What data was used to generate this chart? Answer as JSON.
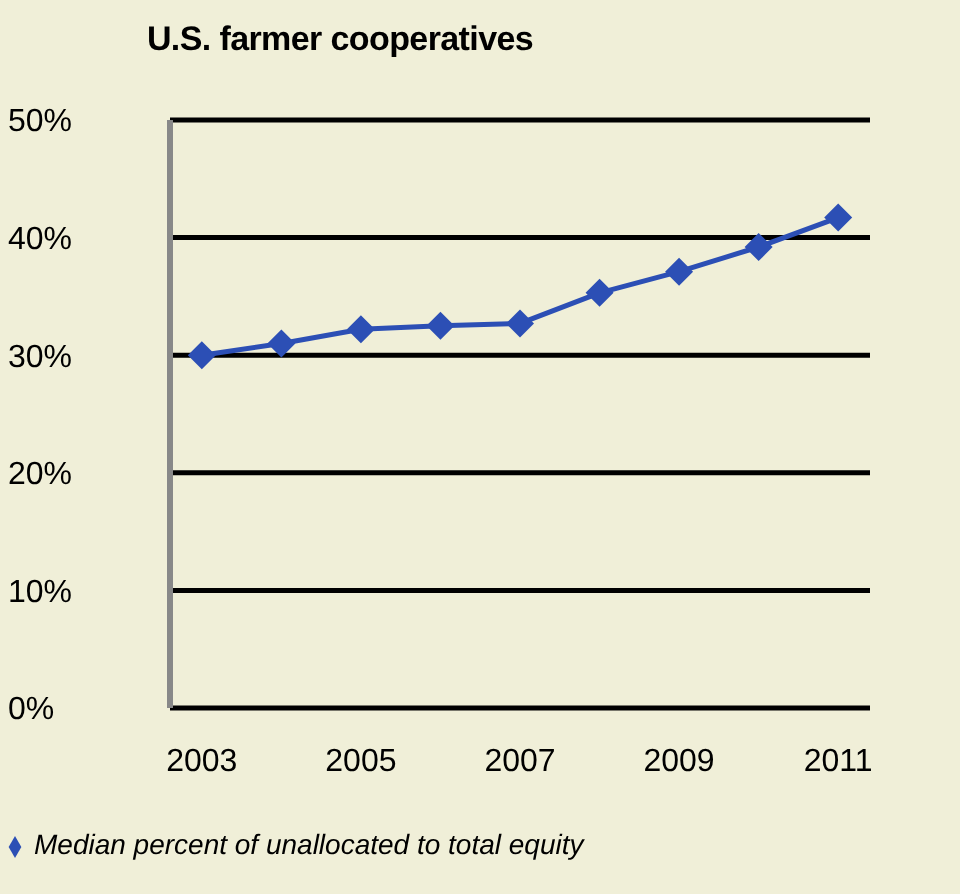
{
  "chart_data": {
    "type": "line",
    "title": "U.S. farmer cooperatives",
    "x": [
      2003,
      2004,
      2005,
      2006,
      2007,
      2008,
      2009,
      2010,
      2011
    ],
    "series": [
      {
        "name": "Median percent of unallocated to total equity",
        "color": "#2c4fb5",
        "values": [
          30.0,
          31.0,
          32.2,
          32.5,
          32.7,
          35.3,
          37.1,
          39.2,
          41.7
        ]
      }
    ],
    "xlim": [
      2002.6,
      2011.4
    ],
    "xticks": [
      2003,
      2005,
      2007,
      2009,
      2011
    ],
    "ylim": [
      0,
      50
    ],
    "yticks": [
      {
        "value": 0,
        "label": "0%"
      },
      {
        "value": 10,
        "label": "10%"
      },
      {
        "value": 20,
        "label": "20%"
      },
      {
        "value": 30,
        "label": "30%"
      },
      {
        "value": 40,
        "label": "40%"
      },
      {
        "value": 50,
        "label": "50%"
      }
    ],
    "grid": "y",
    "legend": "bottom left",
    "marker": "diamond",
    "line_style": "solid"
  }
}
